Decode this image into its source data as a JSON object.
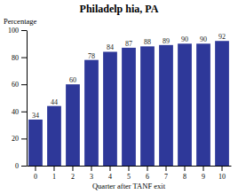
{
  "chart_data": {
    "type": "bar",
    "title": "Philadelp hia, PA",
    "xlabel": "Quarter after TANF exit",
    "ylabel": "Percentage",
    "categories": [
      0,
      1,
      2,
      3,
      4,
      5,
      6,
      7,
      8,
      9,
      10
    ],
    "values": [
      34,
      44,
      60,
      78,
      84,
      87,
      88,
      89,
      90,
      90,
      92
    ],
    "color": "#2E3899",
    "ylim": [
      0,
      100
    ],
    "yticks": [
      0,
      20,
      40,
      60,
      80,
      100
    ],
    "grid": false,
    "data_labels": true
  }
}
